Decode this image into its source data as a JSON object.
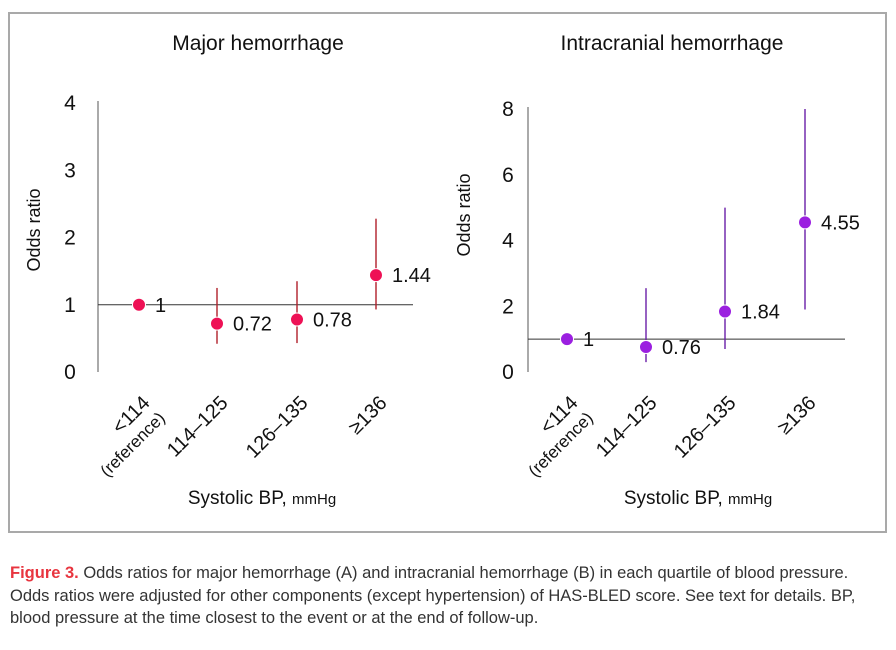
{
  "chart_data": [
    {
      "type": "scatter",
      "title": "Major hemorrhage",
      "xlabel": "Systolic BP,",
      "xlabel_unit": "mmHg",
      "ylabel": "Odds ratio",
      "ylim": [
        0,
        4
      ],
      "yticks": [
        0,
        1,
        2,
        3,
        4
      ],
      "categories": [
        "<114",
        "114–125",
        "126–135",
        "≥136"
      ],
      "category_sublabels": [
        "(reference)",
        "",
        "",
        ""
      ],
      "values": [
        1,
        0.72,
        0.78,
        1.44
      ],
      "ci_low": [
        1,
        0.42,
        0.43,
        0.93
      ],
      "ci_high": [
        1,
        1.25,
        1.35,
        2.28
      ],
      "data_labels": [
        "1",
        "0.72",
        "0.78",
        "1.44"
      ],
      "reference_line": 1,
      "marker_color": "#ee1155",
      "errorbar_color": "#b0202a",
      "grid": false
    },
    {
      "type": "scatter",
      "title": "Intracranial hemorrhage",
      "xlabel": "Systolic BP,",
      "xlabel_unit": "mmHg",
      "ylabel": "Odds ratio",
      "ylim": [
        0,
        8
      ],
      "yticks": [
        0,
        2,
        4,
        6,
        8
      ],
      "categories": [
        "<114",
        "114–125",
        "126–135",
        "≥136"
      ],
      "category_sublabels": [
        "(reference)",
        "",
        "",
        ""
      ],
      "values": [
        1,
        0.76,
        1.84,
        4.55
      ],
      "ci_low": [
        1,
        0.3,
        0.7,
        1.9
      ],
      "ci_high": [
        1,
        2.55,
        5.0,
        8.0
      ],
      "data_labels": [
        "1",
        "0.76",
        "1.84",
        "4.55"
      ],
      "reference_line": 1,
      "marker_color": "#9b1fe0",
      "errorbar_color": "#6a1fa8",
      "grid": false
    }
  ],
  "caption": {
    "label": "Figure 3.",
    "text": " Odds ratios for major hemorrhage (A) and intracranial hemorrhage (B) in each quartile of blood pressure. Odds ratios were adjusted for other components (except hypertension) of HAS-BLED score. See text for details. BP, blood pressure at the time closest to the event or at the end of follow-up."
  }
}
